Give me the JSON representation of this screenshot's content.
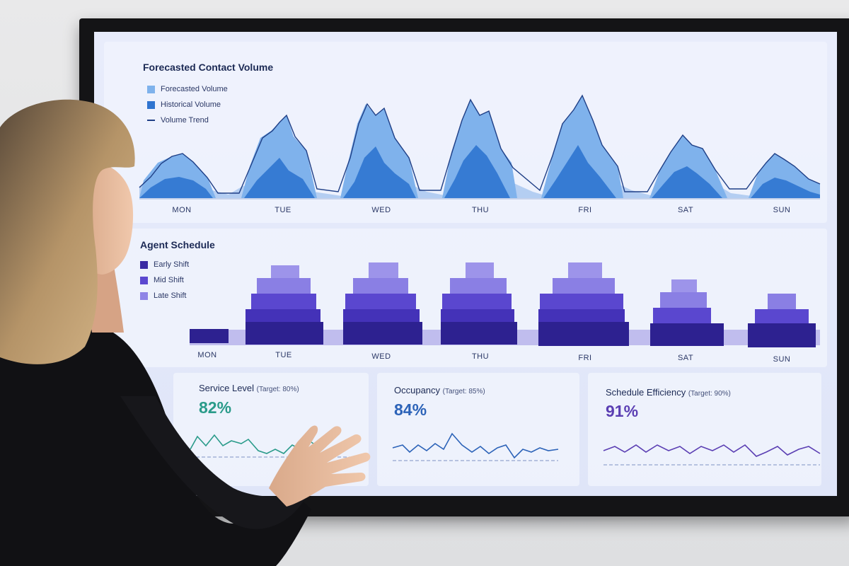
{
  "forecast_panel": {
    "title": "Forecasted Contact Volume",
    "legend": [
      {
        "label": "Forecasted Volume",
        "color": "#7fb2ec"
      },
      {
        "label": "Historical Volume",
        "color": "#2f74d0"
      },
      {
        "label": "Volume Trend",
        "color": "#1f3f86"
      }
    ],
    "days": [
      "MON",
      "TUE",
      "WED",
      "THU",
      "FRI",
      "SAT",
      "SUN"
    ]
  },
  "schedule_panel": {
    "title": "Agent Schedule",
    "legend": [
      {
        "label": "Early Shift",
        "color": "#3a2aa3"
      },
      {
        "label": "Mid Shift",
        "color": "#5b48d0"
      },
      {
        "label": "Late Shift",
        "color": "#8f84e6"
      }
    ],
    "days": [
      "MON",
      "TUE",
      "WED",
      "THU",
      "FRI",
      "SAT",
      "SUN"
    ]
  },
  "kpis": [
    {
      "title": "Service Level",
      "target": "(Target: 80%)",
      "value": "82%",
      "color": "#2a9b8a"
    },
    {
      "title": "Occupancy",
      "target": "(Target: 85%)",
      "value": "84%",
      "color": "#2c63b8"
    },
    {
      "title": "Schedule Efficiency",
      "target": "(Target: 90%)",
      "value": "91%",
      "color": "#5b3fb3"
    }
  ]
}
